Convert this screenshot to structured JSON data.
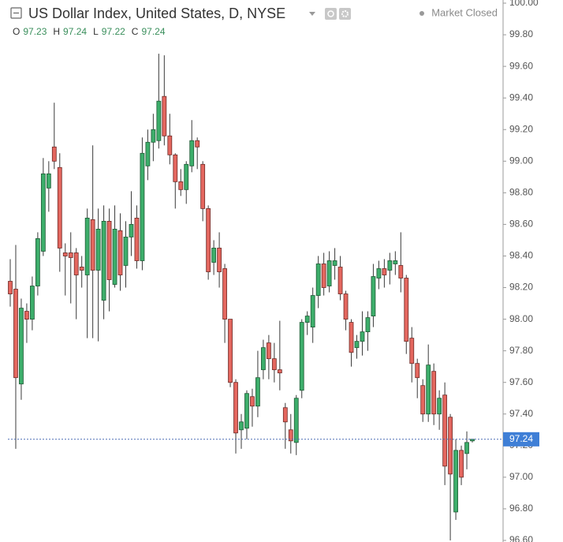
{
  "chart_data": {
    "type": "candlestick",
    "title": "US Dollar Index, United States, D, NYSE",
    "status": "Market Closed",
    "ohlc_legend": [
      {
        "label": "O",
        "value": 97.23
      },
      {
        "label": "H",
        "value": 97.24
      },
      {
        "label": "L",
        "value": 97.22
      },
      {
        "label": "C",
        "value": 97.24
      }
    ],
    "last_price": 97.24,
    "up_color": "#3dae6b",
    "down_color": "#e4675f",
    "ylim": [
      96.59,
      100.02
    ],
    "yticks": [
      {
        "value": 96.6,
        "label": "96.60"
      },
      {
        "value": 96.8,
        "label": "96.80"
      },
      {
        "value": 97.0,
        "label": "97.00"
      },
      {
        "value": 97.2,
        "label": "97.20"
      },
      {
        "value": 97.4,
        "label": "97.40"
      },
      {
        "value": 97.6,
        "label": "97.60"
      },
      {
        "value": 97.8,
        "label": "97.80"
      },
      {
        "value": 98.0,
        "label": "98.00"
      },
      {
        "value": 98.2,
        "label": "98.20"
      },
      {
        "value": 98.4,
        "label": "98.40"
      },
      {
        "value": 98.6,
        "label": "98.60"
      },
      {
        "value": 98.8,
        "label": "98.80"
      },
      {
        "value": 99.0,
        "label": "99.00"
      },
      {
        "value": 99.2,
        "label": "99.20"
      },
      {
        "value": 99.4,
        "label": "99.40"
      },
      {
        "value": 99.6,
        "label": "99.60"
      },
      {
        "value": 99.8,
        "label": "99.80"
      },
      {
        "value": 100.0,
        "label": "100.00"
      }
    ],
    "grid": false,
    "open": [
      98.24,
      98.19,
      97.59,
      98.05,
      98.0,
      98.21,
      98.43,
      98.83,
      99.09,
      98.96,
      98.42,
      98.42,
      98.42,
      98.33,
      98.28,
      98.63,
      98.31,
      98.12,
      98.62,
      98.22,
      98.56,
      98.34,
      98.52,
      98.64,
      98.37,
      98.97,
      99.12,
      99.13,
      99.41,
      99.16,
      99.04,
      98.87,
      98.82,
      98.97,
      99.13,
      98.98,
      98.7,
      98.36,
      98.45,
      98.32,
      98.0,
      97.6,
      97.3,
      97.31,
      97.51,
      97.45,
      97.68,
      97.85,
      97.75,
      97.68,
      97.44,
      97.3,
      97.22,
      97.55,
      97.98,
      97.95,
      98.15,
      98.35,
      98.21,
      98.34,
      98.33,
      98.16,
      97.98,
      97.82,
      97.86,
      97.92,
      98.02,
      98.26,
      98.32,
      98.31,
      98.35,
      98.34,
      98.26,
      97.88,
      97.72,
      97.58,
      97.4,
      97.67,
      97.4,
      97.52,
      97.38,
      96.78,
      97.17,
      97.15,
      97.23
    ],
    "high": [
      98.38,
      98.47,
      98.13,
      98.1,
      98.27,
      98.55,
      99.02,
      99.0,
      99.37,
      99.05,
      98.48,
      98.55,
      98.45,
      98.4,
      98.7,
      99.1,
      98.7,
      98.72,
      98.7,
      98.72,
      98.67,
      98.62,
      98.81,
      98.72,
      99.15,
      99.2,
      99.3,
      99.68,
      99.67,
      99.3,
      99.05,
      98.95,
      99.0,
      99.26,
      99.15,
      99.0,
      98.72,
      98.5,
      98.55,
      98.35,
      98.0,
      97.62,
      97.4,
      97.55,
      97.56,
      97.8,
      97.87,
      97.9,
      97.85,
      97.99,
      97.47,
      97.4,
      97.52,
      98.0,
      98.05,
      98.2,
      98.4,
      98.42,
      98.43,
      98.45,
      98.4,
      98.18,
      98.0,
      97.9,
      98.05,
      98.05,
      98.35,
      98.37,
      98.38,
      98.42,
      98.43,
      98.55,
      98.28,
      97.95,
      97.75,
      97.62,
      97.84,
      97.72,
      97.55,
      97.6,
      97.4,
      97.24,
      97.2,
      97.29,
      97.24
    ],
    "low": [
      98.08,
      97.18,
      97.49,
      97.85,
      97.93,
      98.15,
      98.4,
      98.68,
      98.95,
      98.3,
      98.15,
      98.1,
      98.0,
      98.2,
      97.88,
      97.88,
      97.86,
      98.0,
      98.05,
      98.2,
      98.18,
      98.2,
      98.4,
      98.32,
      98.31,
      98.88,
      99.0,
      99.08,
      99.1,
      98.98,
      98.7,
      98.78,
      98.73,
      98.93,
      98.95,
      98.62,
      98.25,
      98.28,
      98.2,
      97.85,
      97.57,
      97.15,
      97.18,
      97.24,
      97.32,
      97.38,
      97.62,
      97.62,
      97.6,
      97.55,
      97.18,
      97.15,
      97.14,
      97.5,
      97.9,
      97.85,
      98.07,
      98.15,
      98.17,
      98.25,
      98.12,
      97.93,
      97.7,
      97.75,
      97.77,
      97.8,
      97.95,
      98.19,
      98.2,
      98.22,
      98.28,
      98.17,
      97.78,
      97.6,
      97.5,
      97.35,
      97.35,
      97.33,
      97.3,
      96.95,
      96.6,
      96.73,
      96.95,
      97.05,
      97.22
    ],
    "close": [
      98.16,
      97.63,
      98.07,
      98.0,
      98.21,
      98.51,
      98.92,
      98.92,
      99.0,
      98.45,
      98.4,
      98.39,
      98.28,
      98.31,
      98.64,
      98.31,
      98.57,
      98.62,
      98.25,
      98.57,
      98.28,
      98.52,
      98.6,
      98.37,
      99.05,
      99.12,
      99.2,
      99.38,
      99.16,
      99.04,
      98.87,
      98.82,
      98.98,
      99.13,
      99.09,
      98.7,
      98.3,
      98.45,
      98.3,
      98.0,
      97.6,
      97.28,
      97.35,
      97.53,
      97.45,
      97.63,
      97.82,
      97.75,
      97.68,
      97.66,
      97.35,
      97.23,
      97.5,
      97.98,
      98.02,
      98.15,
      98.35,
      98.2,
      98.37,
      98.37,
      98.16,
      98.0,
      97.79,
      97.86,
      97.92,
      98.01,
      98.27,
      98.32,
      98.28,
      98.37,
      98.37,
      98.26,
      97.86,
      97.72,
      97.63,
      97.4,
      97.71,
      97.4,
      97.5,
      97.07,
      97.02,
      97.17,
      97.0,
      97.22,
      97.24
    ]
  }
}
